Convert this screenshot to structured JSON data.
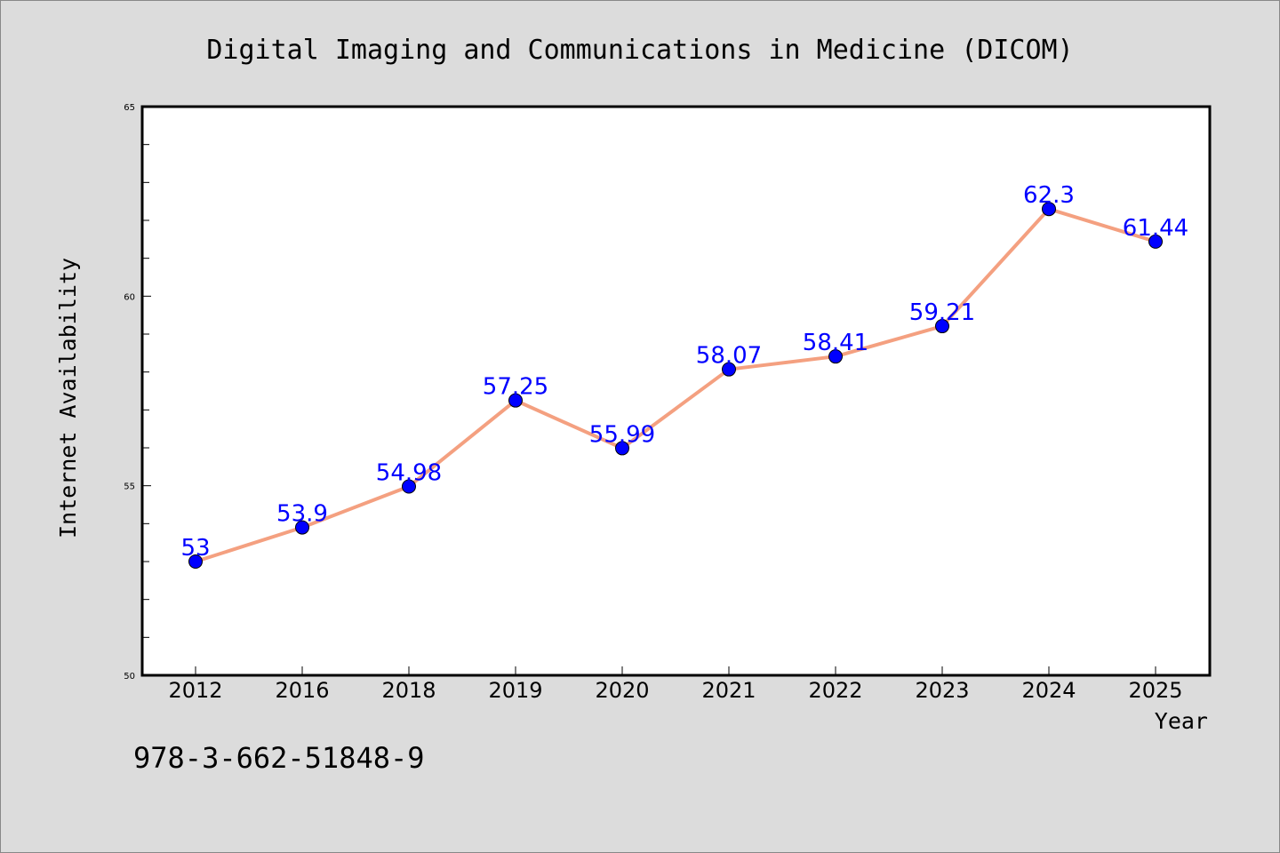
{
  "chart_data": {
    "type": "line",
    "title": "Digital Imaging and Communications in Medicine (DICOM)",
    "xlabel": "Year",
    "ylabel": "Internet Availability",
    "categories": [
      "2012",
      "2016",
      "2018",
      "2019",
      "2020",
      "2021",
      "2022",
      "2023",
      "2024",
      "2025"
    ],
    "series": [
      {
        "values": [
          53,
          53.9,
          54.98,
          57.25,
          55.99,
          58.07,
          58.41,
          59.21,
          62.3,
          61.44
        ],
        "labels": [
          "53",
          "53.9",
          "54.98",
          "57.25",
          "55.99",
          "58.07",
          "58.41",
          "59.21",
          "62.3",
          "61.44"
        ],
        "line_color": "#f4a080",
        "marker_color": "#0000ff"
      }
    ],
    "ylim": [
      50,
      65
    ],
    "yticks": [
      "50",
      "55",
      "60",
      "65"
    ],
    "grid": false,
    "legend": "none",
    "background_color": "#dcdcdc",
    "plot_background_color": "#ffffff"
  },
  "footer": {
    "isbn": "978-3-662-51848-9"
  }
}
